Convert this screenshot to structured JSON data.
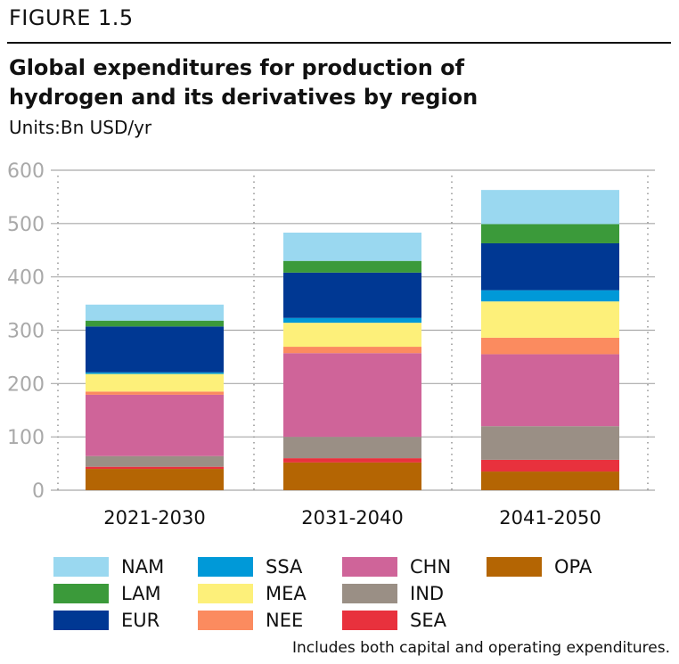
{
  "figure": {
    "label": "FIGURE 1.5",
    "title": "Global expenditures for production of hydrogen and its derivatives by region",
    "units": "Units:Bn USD/yr",
    "note": "Includes both capital and operating expenditures."
  },
  "colors": {
    "NAM": "#9ad8f0",
    "LAM": "#3b9a3a",
    "EUR": "#003893",
    "SSA": "#0099d8",
    "MEA": "#fdf07a",
    "NEE": "#fb8b5f",
    "CHN": "#cf6499",
    "IND": "#9a8f85",
    "SEA": "#e8313d",
    "OPA": "#b46503"
  },
  "chart_data": {
    "type": "bar",
    "stacked": true,
    "title": "Global expenditures for production of hydrogen and its derivatives by region",
    "ylabel": "Bn USD/yr",
    "xlabel": "",
    "ylim": [
      0,
      600
    ],
    "yticks": [
      0,
      100,
      200,
      300,
      400,
      500,
      600
    ],
    "grid": true,
    "categories": [
      "2021-2030",
      "2031-2040",
      "2041-2050"
    ],
    "series": [
      {
        "name": "OPA",
        "values": [
          40,
          52,
          35
        ]
      },
      {
        "name": "SEA",
        "values": [
          4,
          8,
          22
        ]
      },
      {
        "name": "IND",
        "values": [
          20,
          40,
          63
        ]
      },
      {
        "name": "CHN",
        "values": [
          115,
          157,
          135
        ]
      },
      {
        "name": "NEE",
        "values": [
          6,
          12,
          31
        ]
      },
      {
        "name": "MEA",
        "values": [
          33,
          45,
          68
        ]
      },
      {
        "name": "SSA",
        "values": [
          3,
          9,
          21
        ]
      },
      {
        "name": "EUR",
        "values": [
          86,
          85,
          88
        ]
      },
      {
        "name": "LAM",
        "values": [
          11,
          22,
          36
        ]
      },
      {
        "name": "NAM",
        "values": [
          30,
          53,
          64
        ]
      }
    ],
    "legend": {
      "position": "bottom",
      "columns": [
        [
          "NAM",
          "LAM",
          "EUR"
        ],
        [
          "SSA",
          "MEA",
          "NEE"
        ],
        [
          "CHN",
          "IND",
          "SEA"
        ],
        [
          "OPA"
        ]
      ]
    }
  }
}
